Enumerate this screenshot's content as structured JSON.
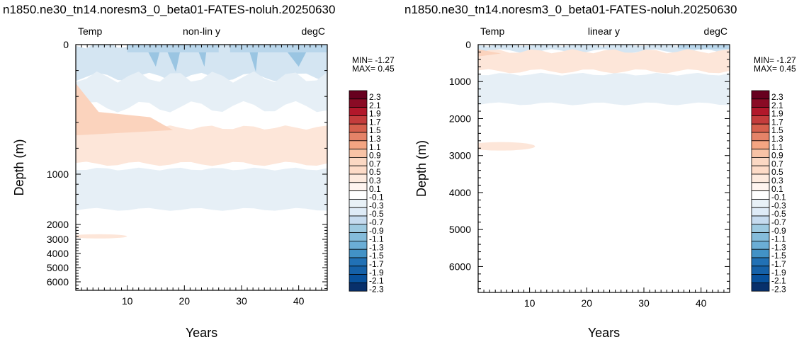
{
  "chart_data": [
    {
      "type": "heatmap",
      "title": "n1850.ne30_tn14.noresm3_0_beta01-FATES-noluh.20250630",
      "left_label": "Temp",
      "center_label": "non-lin y",
      "right_label": "degC",
      "xlabel": "Years",
      "ylabel": "Depth (m)",
      "xlim": [
        1,
        45
      ],
      "x_ticks": [
        10,
        20,
        30,
        40
      ],
      "y_scale": "non-linear",
      "y_ticks": [
        0,
        1000,
        2000,
        3000,
        4000,
        5000,
        6000
      ],
      "ylim": [
        0,
        6500
      ],
      "min_text": "MIN= -1.27",
      "max_text": "MAX=  0.45",
      "min": -1.27,
      "max": 0.45
    },
    {
      "type": "heatmap",
      "title": "n1850.ne30_tn14.noresm3_0_beta01-FATES-noluh.20250630",
      "left_label": "Temp",
      "center_label": "linear y",
      "right_label": "degC",
      "xlabel": "Years",
      "ylabel": "Depth (m)",
      "xlim": [
        1,
        45
      ],
      "x_ticks": [
        10,
        20,
        30,
        40
      ],
      "y_scale": "linear",
      "y_ticks": [
        0,
        1000,
        2000,
        3000,
        4000,
        5000,
        6000
      ],
      "ylim": [
        0,
        6700
      ],
      "min_text": "MIN= -1.27",
      "max_text": "MAX=  0.45",
      "min": -1.27,
      "max": 0.45
    }
  ],
  "colorbar": {
    "labels": [
      "2.3",
      "2.1",
      "1.9",
      "1.7",
      "1.5",
      "1.3",
      "1.1",
      "0.9",
      "0.7",
      "0.5",
      "0.3",
      "0.1",
      "-0.1",
      "-0.3",
      "-0.5",
      "-0.7",
      "-0.9",
      "-1.1",
      "-1.3",
      "-1.5",
      "-1.7",
      "-1.9",
      "-2.1",
      "-2.3"
    ],
    "colors": [
      "#67001f",
      "#8a0b25",
      "#b2182b",
      "#c43c3c",
      "#d6604d",
      "#e58368",
      "#f4a582",
      "#f8c3a6",
      "#fbd8c3",
      "#fddbc7",
      "#fdeade",
      "#fff5f0",
      "#ffffff",
      "#e8f1f7",
      "#deebf7",
      "#c6dbef",
      "#9ecae1",
      "#85bcdb",
      "#6baed6",
      "#4292c6",
      "#2171b5",
      "#1561a8",
      "#08519c",
      "#08306b"
    ]
  },
  "fill_colors": {
    "warm_light": "#fde6d9",
    "warm_mid": "#fbd3bd",
    "cool_light": "#e6eff6",
    "cool_mid": "#d4e5f2",
    "cool_strong": "#b9d6eb",
    "cool_deep": "#9ac5e2"
  }
}
